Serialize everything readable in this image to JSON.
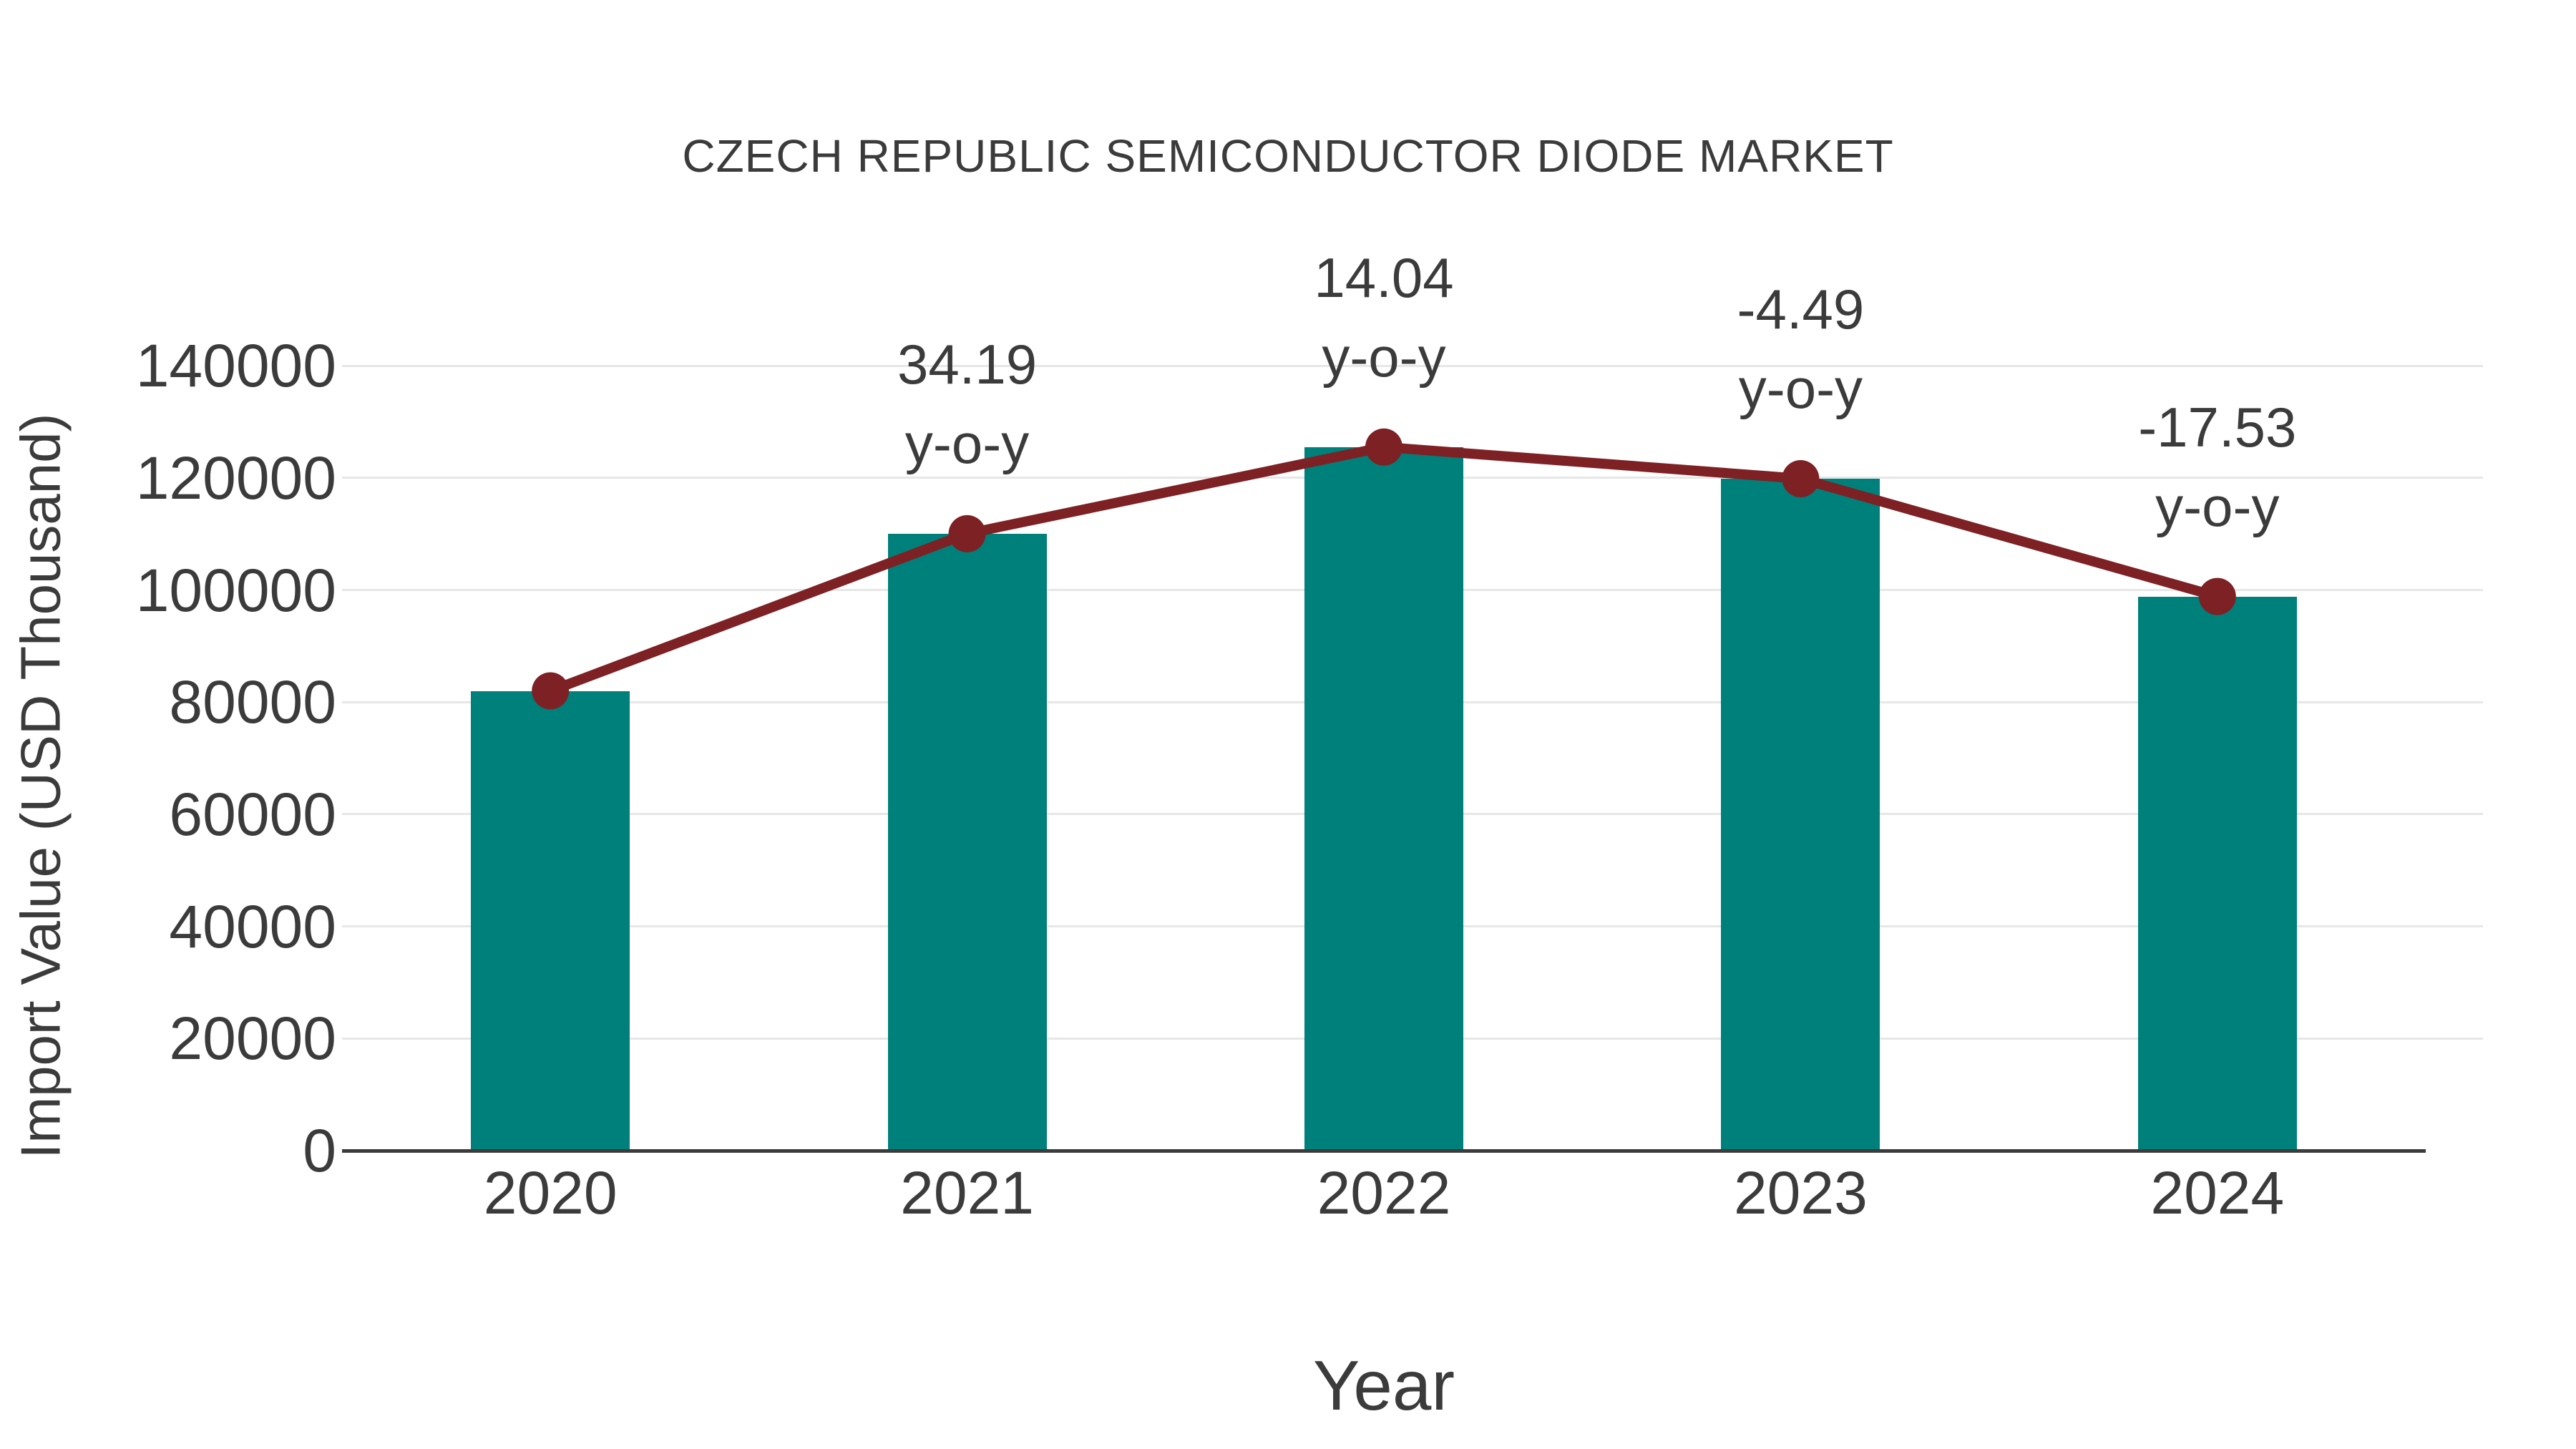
{
  "chart_data": {
    "type": "bar",
    "title": "CZECH REPUBLIC SEMICONDUCTOR DIODE MARKET",
    "xlabel": "Year",
    "ylabel": "Import Value (USD Thousand)",
    "categories": [
      "2020",
      "2021",
      "2022",
      "2023",
      "2024"
    ],
    "series": [
      {
        "name": "import-value-bars",
        "type": "bar",
        "color": "#00807b",
        "values": [
          82000,
          110040,
          125490,
          119850,
          98840
        ]
      },
      {
        "name": "import-value-line",
        "type": "line",
        "color": "#7d2125",
        "values": [
          82000,
          110040,
          125490,
          119850,
          98840
        ]
      }
    ],
    "annotations": [
      {
        "category": "2021",
        "line1": "34.19",
        "line2": "y-o-y"
      },
      {
        "category": "2022",
        "line1": "14.04",
        "line2": "y-o-y"
      },
      {
        "category": "2023",
        "line1": "-4.49",
        "line2": "y-o-y"
      },
      {
        "category": "2024",
        "line1": "-17.53",
        "line2": "y-o-y"
      }
    ],
    "yticks": [
      0,
      20000,
      40000,
      60000,
      80000,
      100000,
      120000,
      140000
    ],
    "ylim": [
      0,
      140000
    ],
    "grid": "horizontal",
    "legend_position": "none"
  },
  "colors": {
    "bar": "#00807b",
    "line": "#7d2125",
    "text": "#3b3b3b",
    "grid": "#e7e7e7",
    "axis": "#3b3b3b"
  }
}
